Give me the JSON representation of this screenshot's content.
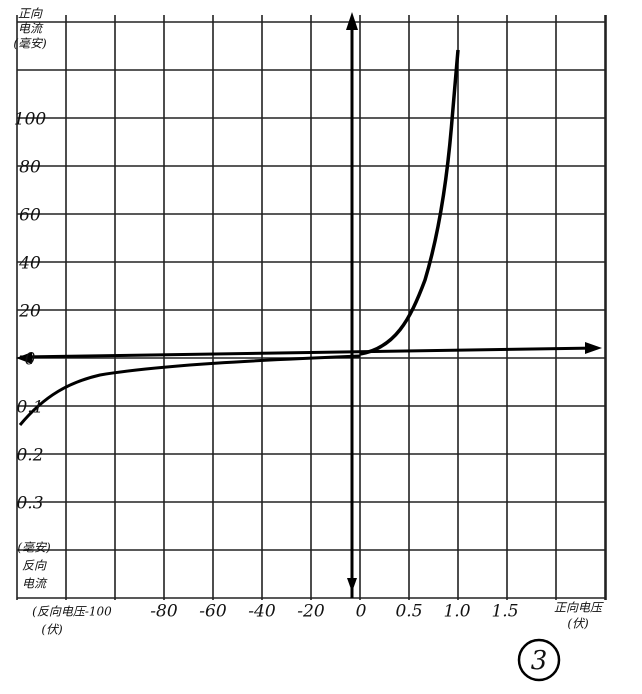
{
  "y_labels_forward": [
    "100",
    "80",
    "60",
    "40",
    "20",
    "0"
  ],
  "y_labels_reverse": [
    "0.1",
    "0.2",
    "0.3"
  ],
  "y_axis_forward_title": [
    "正向",
    "电流",
    "(毫安)"
  ],
  "y_axis_reverse_title": [
    "(毫安)",
    "反向",
    "电流"
  ],
  "x_labels_reverse": [
    "-80",
    "-60",
    "-40",
    "-20"
  ],
  "x_label_reverse_first": "(反向电压-100",
  "x_label_reverse_unit": "(伏)",
  "x_labels_forward": [
    "0",
    "0.5",
    "1.0",
    "1.5"
  ],
  "x_axis_forward_title": "正向电压",
  "x_axis_forward_unit": "(伏)",
  "figure_number": "3"
}
